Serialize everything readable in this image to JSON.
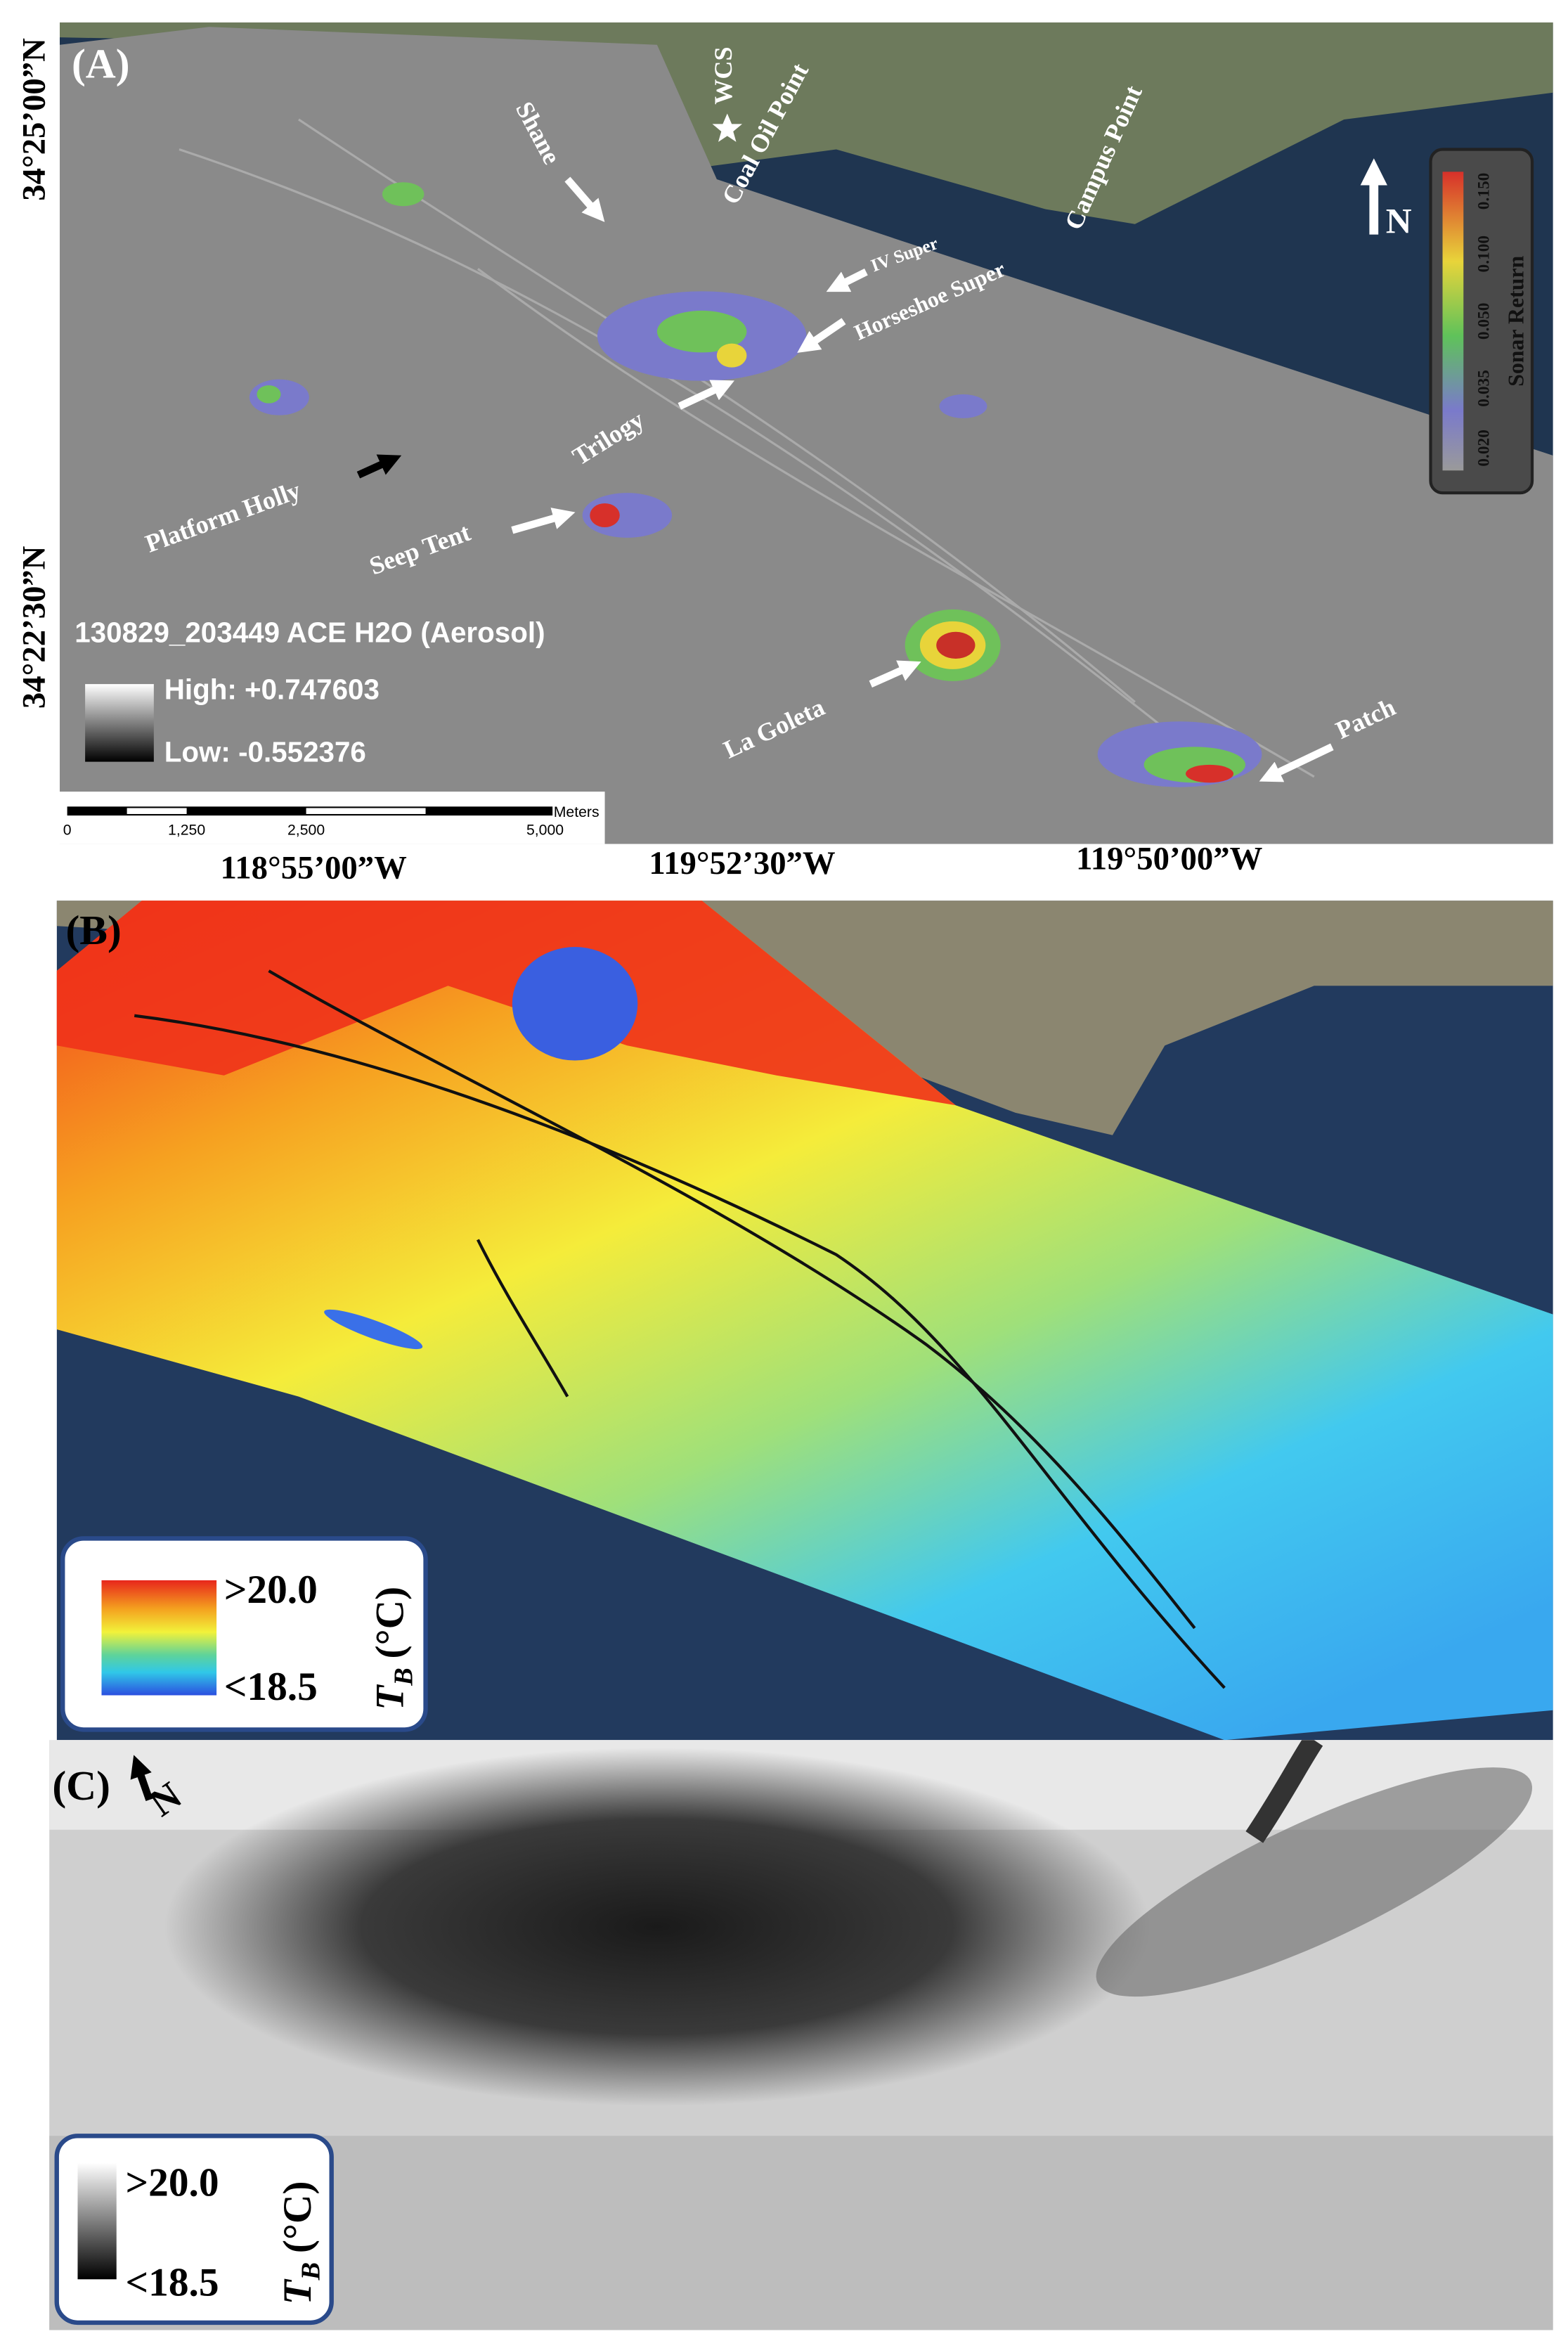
{
  "panel_a": {
    "label": "(A)",
    "latitudes": [
      "34°25’00”N",
      "34°22’30”N"
    ],
    "longitudes": [
      "118°55’00”W",
      "119°52’30”W",
      "119°50’00”W"
    ],
    "places": [
      "Shane",
      "WCS",
      "Coal Oil Point",
      "Campus Point",
      "IV Super",
      "Horseshoe Super",
      "Trilogy",
      "Platform Holly",
      "Seep Tent",
      "La Goleta",
      "Patch"
    ],
    "north": "N",
    "legend": {
      "title": "Sonar Return",
      "ticks": [
        "0.020",
        "0.035",
        "0.050",
        "0.100",
        "0.150"
      ]
    },
    "image_info": {
      "name": "130829_203449 ACE H2O (Aerosol)",
      "high": "High: +0.747603",
      "low": "Low: -0.552376"
    },
    "scale_bar": {
      "ticks": [
        "0",
        "1,250",
        "2,500",
        "5,000"
      ],
      "unit": "Meters"
    }
  },
  "panel_b": {
    "label": "(B)",
    "legend": {
      "max": ">20.0",
      "min": "<18.5",
      "symbol": "T",
      "subscript": "B",
      "unit": "(°C)"
    }
  },
  "panel_c": {
    "label": "(C)",
    "north": "N",
    "legend": {
      "max": ">20.0",
      "min": "<18.5",
      "symbol": "T",
      "subscript": "B",
      "unit": "(°C)"
    }
  }
}
